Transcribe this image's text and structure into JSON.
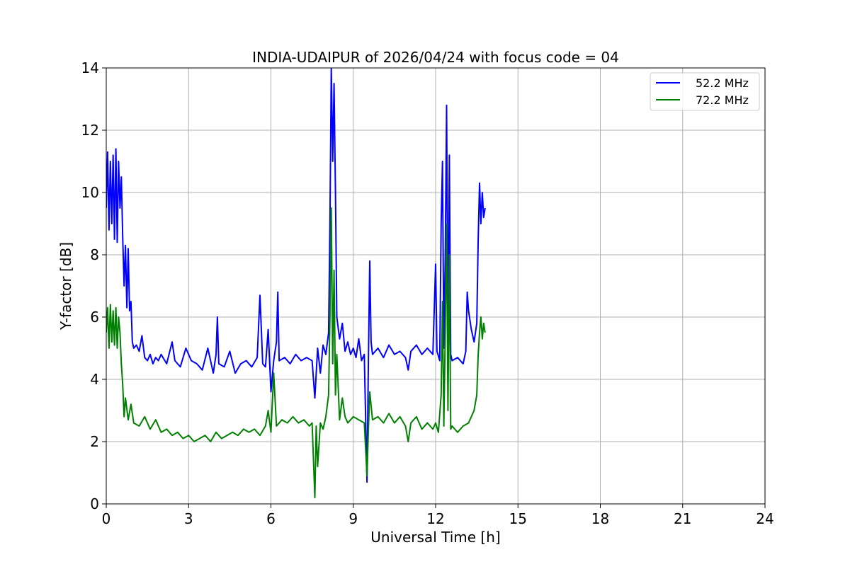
{
  "chart_data": {
    "type": "line",
    "title": "INDIA-UDAIPUR of 2026/04/24 with focus code = 04",
    "xlabel": "Universal Time [h]",
    "ylabel": "Y-factor [dB]",
    "xlim": [
      0,
      24
    ],
    "ylim": [
      0,
      14
    ],
    "xticks": [
      0,
      3,
      6,
      9,
      12,
      15,
      18,
      21,
      24
    ],
    "yticks": [
      0,
      2,
      4,
      6,
      8,
      10,
      12,
      14
    ],
    "grid": true,
    "legend_position": "top-right",
    "series": [
      {
        "name": "52.2 MHz",
        "color": "#0000ff",
        "points": [
          [
            0.0,
            9.5
          ],
          [
            0.05,
            11.3
          ],
          [
            0.1,
            8.8
          ],
          [
            0.15,
            11.0
          ],
          [
            0.2,
            9.0
          ],
          [
            0.25,
            11.2
          ],
          [
            0.3,
            8.5
          ],
          [
            0.35,
            11.4
          ],
          [
            0.4,
            8.4
          ],
          [
            0.45,
            11.0
          ],
          [
            0.5,
            9.5
          ],
          [
            0.55,
            10.5
          ],
          [
            0.6,
            8.5
          ],
          [
            0.65,
            7.0
          ],
          [
            0.7,
            8.3
          ],
          [
            0.75,
            6.3
          ],
          [
            0.8,
            8.2
          ],
          [
            0.85,
            6.2
          ],
          [
            0.9,
            6.5
          ],
          [
            0.95,
            5.2
          ],
          [
            1.0,
            5.0
          ],
          [
            1.1,
            5.1
          ],
          [
            1.2,
            4.9
          ],
          [
            1.3,
            5.4
          ],
          [
            1.4,
            4.7
          ],
          [
            1.5,
            4.6
          ],
          [
            1.6,
            4.8
          ],
          [
            1.7,
            4.5
          ],
          [
            1.8,
            4.7
          ],
          [
            1.9,
            4.6
          ],
          [
            2.0,
            4.8
          ],
          [
            2.2,
            4.5
          ],
          [
            2.4,
            5.2
          ],
          [
            2.5,
            4.6
          ],
          [
            2.7,
            4.4
          ],
          [
            2.9,
            5.0
          ],
          [
            3.1,
            4.6
          ],
          [
            3.3,
            4.5
          ],
          [
            3.5,
            4.3
          ],
          [
            3.7,
            5.0
          ],
          [
            3.9,
            4.2
          ],
          [
            4.0,
            4.8
          ],
          [
            4.05,
            6.0
          ],
          [
            4.1,
            4.5
          ],
          [
            4.3,
            4.4
          ],
          [
            4.5,
            4.9
          ],
          [
            4.7,
            4.2
          ],
          [
            4.9,
            4.5
          ],
          [
            5.1,
            4.6
          ],
          [
            5.3,
            4.4
          ],
          [
            5.5,
            4.7
          ],
          [
            5.6,
            6.7
          ],
          [
            5.7,
            4.5
          ],
          [
            5.8,
            4.4
          ],
          [
            5.9,
            5.6
          ],
          [
            6.0,
            3.6
          ],
          [
            6.1,
            4.6
          ],
          [
            6.2,
            5.2
          ],
          [
            6.25,
            6.8
          ],
          [
            6.3,
            4.6
          ],
          [
            6.5,
            4.7
          ],
          [
            6.7,
            4.5
          ],
          [
            6.9,
            4.8
          ],
          [
            7.1,
            4.6
          ],
          [
            7.3,
            4.7
          ],
          [
            7.5,
            4.6
          ],
          [
            7.6,
            3.4
          ],
          [
            7.7,
            5.0
          ],
          [
            7.8,
            4.2
          ],
          [
            7.9,
            5.1
          ],
          [
            8.0,
            4.8
          ],
          [
            8.1,
            5.5
          ],
          [
            8.15,
            9.0
          ],
          [
            8.2,
            14.0
          ],
          [
            8.25,
            11.0
          ],
          [
            8.3,
            13.5
          ],
          [
            8.35,
            10.0
          ],
          [
            8.4,
            6.0
          ],
          [
            8.5,
            5.3
          ],
          [
            8.6,
            5.8
          ],
          [
            8.7,
            4.9
          ],
          [
            8.8,
            5.2
          ],
          [
            8.9,
            4.8
          ],
          [
            9.0,
            5.0
          ],
          [
            9.1,
            4.7
          ],
          [
            9.2,
            5.3
          ],
          [
            9.3,
            4.6
          ],
          [
            9.4,
            4.8
          ],
          [
            9.5,
            0.7
          ],
          [
            9.55,
            4.6
          ],
          [
            9.6,
            7.8
          ],
          [
            9.65,
            5.2
          ],
          [
            9.7,
            4.8
          ],
          [
            9.9,
            5.0
          ],
          [
            10.1,
            4.7
          ],
          [
            10.3,
            5.1
          ],
          [
            10.5,
            4.8
          ],
          [
            10.7,
            4.9
          ],
          [
            10.9,
            4.7
          ],
          [
            11.0,
            4.3
          ],
          [
            11.1,
            4.9
          ],
          [
            11.3,
            5.1
          ],
          [
            11.5,
            4.8
          ],
          [
            11.7,
            5.0
          ],
          [
            11.9,
            4.8
          ],
          [
            12.0,
            7.7
          ],
          [
            12.05,
            4.9
          ],
          [
            12.15,
            4.6
          ],
          [
            12.2,
            9.0
          ],
          [
            12.25,
            11.0
          ],
          [
            12.3,
            5.0
          ],
          [
            12.35,
            8.0
          ],
          [
            12.4,
            12.8
          ],
          [
            12.45,
            5.0
          ],
          [
            12.5,
            11.2
          ],
          [
            12.55,
            4.8
          ],
          [
            12.6,
            4.6
          ],
          [
            12.8,
            4.7
          ],
          [
            13.0,
            4.5
          ],
          [
            13.1,
            4.9
          ],
          [
            13.15,
            6.8
          ],
          [
            13.2,
            6.2
          ],
          [
            13.3,
            5.6
          ],
          [
            13.4,
            5.2
          ],
          [
            13.5,
            5.8
          ],
          [
            13.55,
            8.5
          ],
          [
            13.6,
            10.3
          ],
          [
            13.65,
            9.0
          ],
          [
            13.7,
            10.0
          ],
          [
            13.75,
            9.2
          ],
          [
            13.8,
            9.5
          ]
        ]
      },
      {
        "name": "72.2 MHz",
        "color": "#008000",
        "points": [
          [
            0.0,
            5.5
          ],
          [
            0.05,
            6.3
          ],
          [
            0.1,
            5.0
          ],
          [
            0.15,
            6.4
          ],
          [
            0.2,
            5.2
          ],
          [
            0.25,
            6.2
          ],
          [
            0.3,
            5.1
          ],
          [
            0.35,
            6.3
          ],
          [
            0.4,
            5.0
          ],
          [
            0.45,
            6.0
          ],
          [
            0.5,
            5.5
          ],
          [
            0.55,
            4.5
          ],
          [
            0.6,
            3.8
          ],
          [
            0.65,
            2.8
          ],
          [
            0.7,
            3.4
          ],
          [
            0.8,
            2.7
          ],
          [
            0.9,
            3.2
          ],
          [
            1.0,
            2.6
          ],
          [
            1.2,
            2.5
          ],
          [
            1.4,
            2.8
          ],
          [
            1.6,
            2.4
          ],
          [
            1.8,
            2.7
          ],
          [
            2.0,
            2.3
          ],
          [
            2.2,
            2.4
          ],
          [
            2.4,
            2.2
          ],
          [
            2.6,
            2.3
          ],
          [
            2.8,
            2.1
          ],
          [
            3.0,
            2.2
          ],
          [
            3.2,
            2.0
          ],
          [
            3.4,
            2.1
          ],
          [
            3.6,
            2.2
          ],
          [
            3.8,
            2.0
          ],
          [
            4.0,
            2.3
          ],
          [
            4.2,
            2.1
          ],
          [
            4.4,
            2.2
          ],
          [
            4.6,
            2.3
          ],
          [
            4.8,
            2.2
          ],
          [
            5.0,
            2.4
          ],
          [
            5.2,
            2.3
          ],
          [
            5.4,
            2.4
          ],
          [
            5.6,
            2.2
          ],
          [
            5.8,
            2.5
          ],
          [
            5.9,
            3.0
          ],
          [
            6.0,
            2.3
          ],
          [
            6.1,
            4.2
          ],
          [
            6.2,
            2.5
          ],
          [
            6.4,
            2.7
          ],
          [
            6.6,
            2.6
          ],
          [
            6.8,
            2.8
          ],
          [
            7.0,
            2.6
          ],
          [
            7.2,
            2.7
          ],
          [
            7.4,
            2.5
          ],
          [
            7.5,
            2.6
          ],
          [
            7.6,
            0.2
          ],
          [
            7.65,
            2.5
          ],
          [
            7.7,
            1.2
          ],
          [
            7.8,
            2.6
          ],
          [
            7.9,
            2.4
          ],
          [
            8.0,
            2.8
          ],
          [
            8.1,
            3.5
          ],
          [
            8.15,
            6.0
          ],
          [
            8.2,
            9.5
          ],
          [
            8.25,
            4.5
          ],
          [
            8.3,
            7.5
          ],
          [
            8.35,
            3.5
          ],
          [
            8.4,
            4.8
          ],
          [
            8.5,
            2.7
          ],
          [
            8.6,
            3.4
          ],
          [
            8.7,
            2.8
          ],
          [
            8.8,
            2.6
          ],
          [
            9.0,
            2.8
          ],
          [
            9.2,
            2.7
          ],
          [
            9.4,
            2.6
          ],
          [
            9.5,
            0.9
          ],
          [
            9.55,
            2.4
          ],
          [
            9.6,
            3.6
          ],
          [
            9.7,
            2.7
          ],
          [
            9.9,
            2.8
          ],
          [
            10.1,
            2.6
          ],
          [
            10.3,
            2.9
          ],
          [
            10.5,
            2.6
          ],
          [
            10.7,
            2.8
          ],
          [
            10.9,
            2.5
          ],
          [
            11.0,
            2.0
          ],
          [
            11.1,
            2.6
          ],
          [
            11.3,
            2.8
          ],
          [
            11.5,
            2.4
          ],
          [
            11.7,
            2.6
          ],
          [
            11.9,
            2.4
          ],
          [
            12.0,
            2.6
          ],
          [
            12.1,
            2.3
          ],
          [
            12.2,
            3.5
          ],
          [
            12.25,
            6.5
          ],
          [
            12.3,
            2.5
          ],
          [
            12.35,
            5.5
          ],
          [
            12.4,
            9.0
          ],
          [
            12.45,
            3.0
          ],
          [
            12.5,
            8.0
          ],
          [
            12.55,
            2.4
          ],
          [
            12.6,
            2.5
          ],
          [
            12.8,
            2.3
          ],
          [
            13.0,
            2.5
          ],
          [
            13.2,
            2.6
          ],
          [
            13.4,
            3.0
          ],
          [
            13.5,
            3.5
          ],
          [
            13.55,
            4.8
          ],
          [
            13.6,
            5.5
          ],
          [
            13.65,
            6.0
          ],
          [
            13.7,
            5.3
          ],
          [
            13.75,
            5.8
          ],
          [
            13.8,
            5.5
          ]
        ]
      }
    ]
  }
}
